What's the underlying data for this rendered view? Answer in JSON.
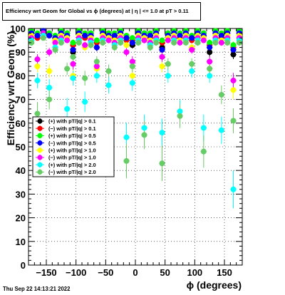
{
  "title": "Efficiency wrt Geom for Global vs ϕ (degrees) at |  η | <= 1.0 at pT > 0.11",
  "footer": "Thu Sep 22 14:13:21 2022",
  "chart_data": {
    "type": "scatter",
    "title": "Efficiency wrt Geom for Global vs ϕ (degrees) at |  η | <= 1.0 at pT > 0.11",
    "xlabel": "ϕ (degrees)",
    "ylabel": "Efficiency wrt Geom (%)",
    "xlim": [
      -180,
      180
    ],
    "ylim": [
      0,
      100
    ],
    "x_ticks": [
      "−150",
      "−100",
      "−50",
      "0",
      "50",
      "100",
      "150"
    ],
    "y_ticks": [
      "0",
      "10",
      "20",
      "30",
      "40",
      "50",
      "60",
      "70",
      "80",
      "90",
      "100"
    ],
    "grid": true,
    "legend_position": "left-middle",
    "series": [
      {
        "name": "(+) with pT/|q| > 0.1",
        "color": "#000000",
        "marker": "circle",
        "x": [
          -175,
          -165,
          -155,
          -145,
          -135,
          -125,
          -115,
          -105,
          -95,
          -85,
          -75,
          -65,
          -55,
          -45,
          -35,
          -25,
          -15,
          -5,
          5,
          15,
          25,
          35,
          45,
          55,
          65,
          75,
          85,
          95,
          105,
          115,
          125,
          135,
          145,
          155,
          165,
          175
        ],
        "y": [
          99,
          97,
          99,
          98,
          96,
          99,
          98,
          90,
          99,
          97,
          98,
          92,
          99,
          98,
          97,
          99,
          96,
          93,
          99,
          98,
          97,
          99,
          92,
          98,
          99,
          97,
          99,
          96,
          99,
          98,
          90,
          99,
          97,
          99,
          89,
          99
        ]
      },
      {
        "name": "(−) with pT/|q| > 0.1",
        "color": "#ff0000",
        "marker": "circle",
        "x": [
          -175,
          -165,
          -155,
          -145,
          -135,
          -125,
          -115,
          -105,
          -95,
          -85,
          -75,
          -65,
          -55,
          -45,
          -35,
          -25,
          -15,
          -5,
          5,
          15,
          25,
          35,
          45,
          55,
          65,
          75,
          85,
          95,
          105,
          115,
          125,
          135,
          145,
          155,
          165,
          175
        ],
        "y": [
          98,
          96,
          99,
          97,
          95,
          98,
          97,
          93,
          98,
          96,
          97,
          94,
          98,
          97,
          96,
          98,
          95,
          95,
          98,
          97,
          96,
          98,
          94,
          97,
          98,
          96,
          98,
          95,
          98,
          97,
          93,
          98,
          96,
          98,
          92,
          98
        ]
      },
      {
        "name": "(+) with pT/|q| > 0.5",
        "color": "#00ff00",
        "marker": "circle",
        "x": [
          -175,
          -165,
          -155,
          -145,
          -135,
          -125,
          -115,
          -105,
          -95,
          -85,
          -75,
          -65,
          -55,
          -45,
          -35,
          -25,
          -15,
          -5,
          5,
          15,
          25,
          35,
          45,
          55,
          65,
          75,
          85,
          95,
          105,
          115,
          125,
          135,
          145,
          155,
          165,
          175
        ],
        "y": [
          99,
          98,
          99,
          98,
          97,
          99,
          98,
          94,
          99,
          98,
          98,
          95,
          99,
          98,
          98,
          99,
          97,
          96,
          99,
          98,
          98,
          99,
          95,
          98,
          99,
          98,
          99,
          97,
          99,
          98,
          94,
          99,
          98,
          99,
          93,
          99
        ]
      },
      {
        "name": "(−) with pT/|q| > 0.5",
        "color": "#0000ff",
        "marker": "circle",
        "x": [
          -175,
          -165,
          -155,
          -145,
          -135,
          -125,
          -115,
          -105,
          -95,
          -85,
          -75,
          -65,
          -55,
          -45,
          -35,
          -25,
          -15,
          -5,
          5,
          15,
          25,
          35,
          45,
          55,
          65,
          75,
          85,
          95,
          105,
          115,
          125,
          135,
          145,
          155,
          165,
          175
        ],
        "y": [
          98,
          97,
          99,
          97,
          96,
          98,
          97,
          91,
          98,
          97,
          97,
          92,
          98,
          97,
          97,
          98,
          96,
          94,
          98,
          97,
          97,
          98,
          91,
          97,
          98,
          97,
          98,
          96,
          98,
          97,
          92,
          98,
          97,
          98,
          91,
          98
        ]
      },
      {
        "name": "(+) with pT/|q| > 1.0",
        "color": "#ffff00",
        "marker": "circle",
        "x": [
          -175,
          -165,
          -155,
          -145,
          -135,
          -125,
          -115,
          -105,
          -95,
          -85,
          -75,
          -65,
          -55,
          -45,
          -35,
          -25,
          -15,
          -5,
          5,
          15,
          25,
          35,
          45,
          55,
          65,
          75,
          85,
          95,
          105,
          115,
          125,
          135,
          145,
          155,
          165,
          175
        ],
        "y": [
          97,
          84,
          98,
          82,
          95,
          97,
          96,
          80,
          97,
          92,
          96,
          83,
          97,
          96,
          95,
          97,
          93,
          80,
          97,
          96,
          95,
          97,
          84,
          96,
          97,
          95,
          97,
          92,
          97,
          96,
          83,
          97,
          95,
          97,
          74,
          97
        ]
      },
      {
        "name": "(−) with pT/|q| > 1.0",
        "color": "#ff00ff",
        "marker": "circle",
        "x": [
          -175,
          -165,
          -155,
          -145,
          -135,
          -125,
          -115,
          -105,
          -95,
          -85,
          -75,
          -65,
          -55,
          -45,
          -35,
          -25,
          -15,
          -5,
          5,
          15,
          25,
          35,
          45,
          55,
          65,
          75,
          85,
          95,
          105,
          115,
          125,
          135,
          145,
          155,
          165,
          175
        ],
        "y": [
          96,
          87,
          98,
          90,
          94,
          96,
          95,
          85,
          96,
          93,
          95,
          84,
          96,
          95,
          94,
          96,
          90,
          86,
          96,
          95,
          94,
          96,
          88,
          95,
          96,
          94,
          96,
          91,
          96,
          95,
          86,
          96,
          94,
          96,
          78,
          96
        ]
      },
      {
        "name": "(+) with pT/|q| > 2.0",
        "color": "#00ffff",
        "marker": "circle",
        "x": [
          -175,
          -165,
          -155,
          -145,
          -135,
          -125,
          -115,
          -105,
          -95,
          -85,
          -75,
          -65,
          -55,
          -45,
          -35,
          -25,
          -15,
          -5,
          5,
          15,
          25,
          35,
          45,
          55,
          65,
          75,
          85,
          95,
          105,
          115,
          125,
          135,
          145,
          155,
          165,
          175
        ],
        "y": [
          95,
          78,
          97,
          75,
          92,
          95,
          66,
          79,
          95,
          69,
          94,
          80,
          95,
          76,
          93,
          95,
          54,
          77,
          95,
          58,
          93,
          95,
          56,
          80,
          95,
          65,
          95,
          82,
          95,
          58,
          80,
          95,
          57,
          95,
          32,
          95
        ]
      },
      {
        "name": "(−) with pT/|q| > 2.0",
        "color": "#66cc66",
        "marker": "circle",
        "x": [
          -175,
          -165,
          -155,
          -145,
          -135,
          -125,
          -115,
          -105,
          -95,
          -85,
          -75,
          -65,
          -55,
          -45,
          -35,
          -25,
          -15,
          -5,
          5,
          15,
          25,
          35,
          45,
          55,
          65,
          75,
          85,
          95,
          105,
          115,
          125,
          135,
          145,
          155,
          165,
          175
        ],
        "y": [
          94,
          64,
          96,
          70,
          91,
          94,
          83,
          88,
          94,
          79,
          93,
          86,
          94,
          82,
          92,
          94,
          44,
          84,
          94,
          55,
          92,
          94,
          43,
          85,
          94,
          63,
          94,
          85,
          94,
          48,
          83,
          94,
          72,
          94,
          61,
          94
        ]
      }
    ]
  }
}
